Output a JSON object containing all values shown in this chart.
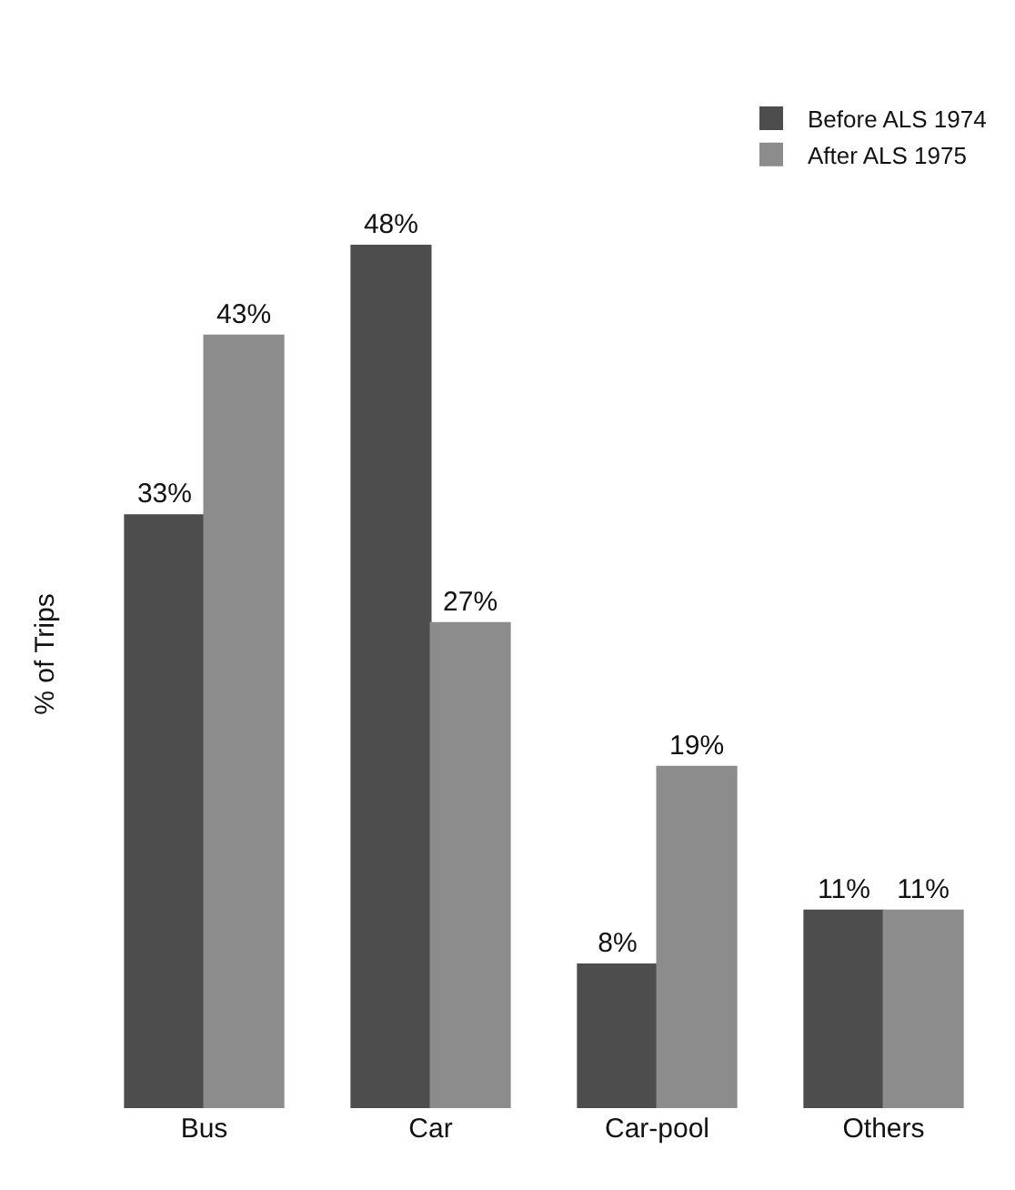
{
  "chart_data": {
    "type": "bar",
    "ylabel": "% of Trips",
    "categories": [
      "Bus",
      "Car",
      "Car-pool",
      "Others"
    ],
    "legend": "top right",
    "series": [
      {
        "name": "Before ALS 1974",
        "color": "#4d4d4d",
        "values": [
          33,
          48,
          8,
          11
        ],
        "value_labels": [
          "33%",
          "48%",
          "8%",
          "11%"
        ]
      },
      {
        "name": "After ALS 1975",
        "color": "#8c8c8c",
        "values": [
          43,
          27,
          19,
          11
        ],
        "value_labels": [
          "43%",
          "27%",
          "19%",
          "11%"
        ]
      }
    ]
  }
}
